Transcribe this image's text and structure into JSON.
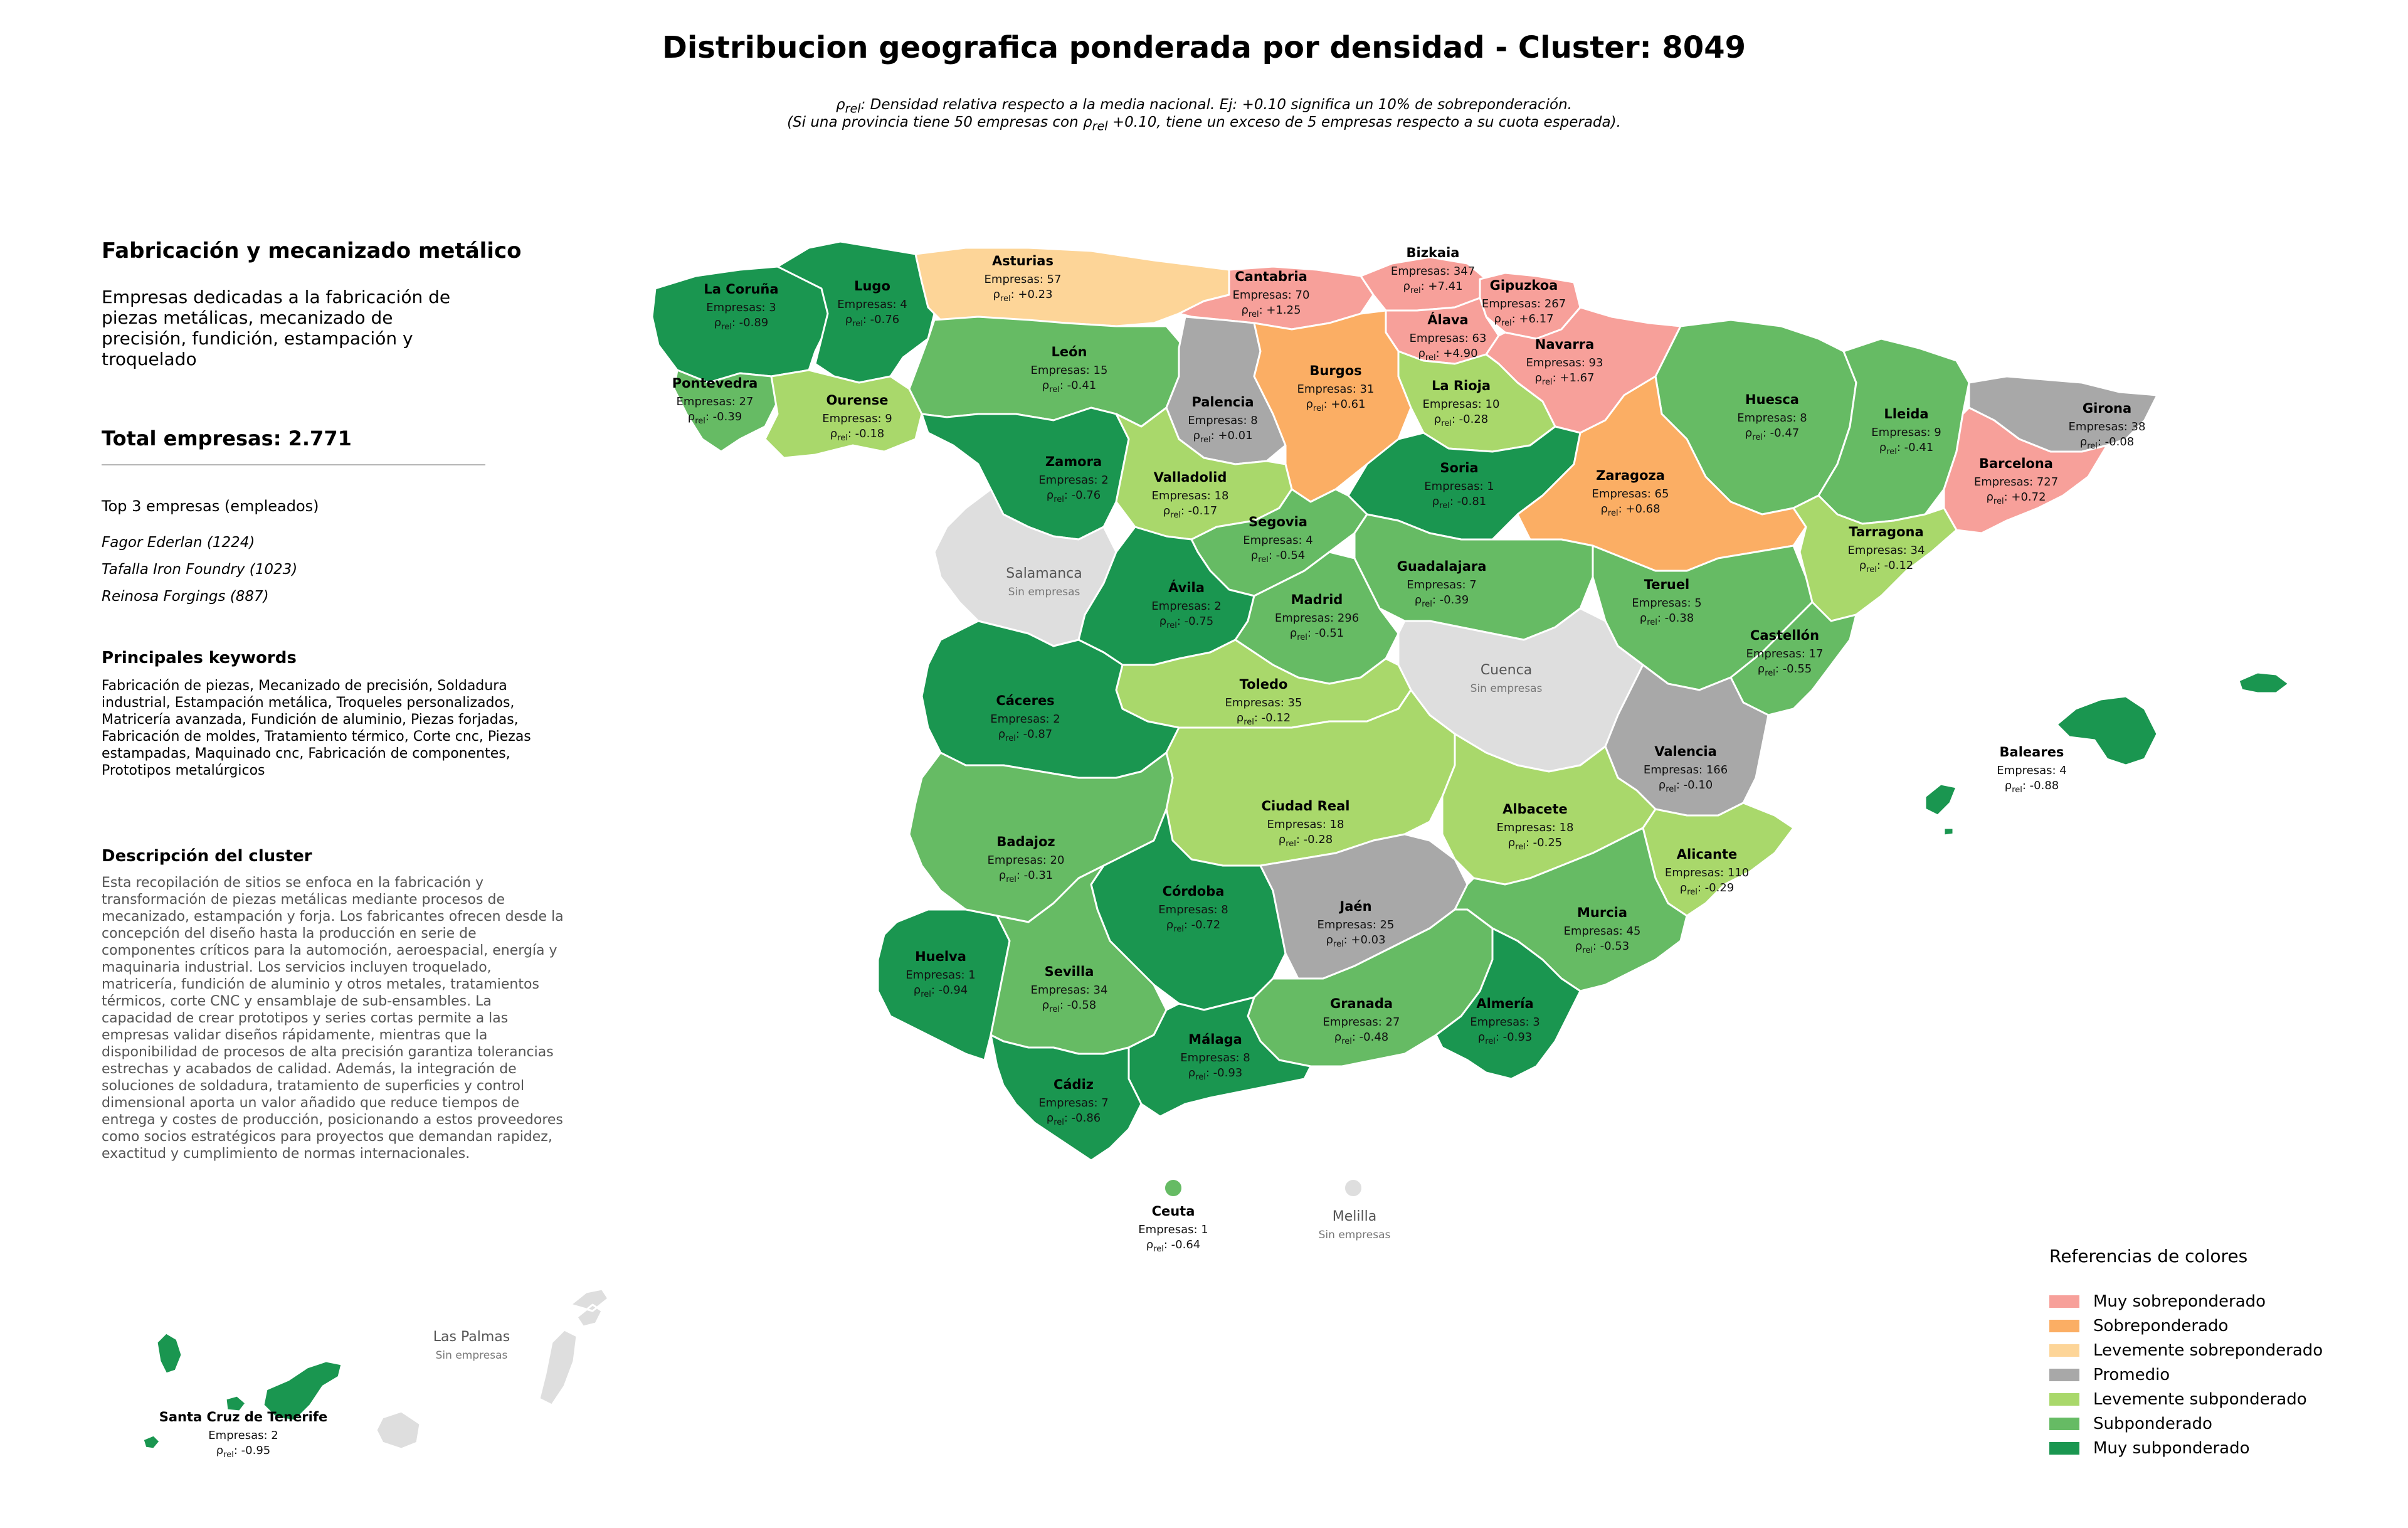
{
  "title": "Distribucion geografica ponderada por densidad - Cluster: 8049",
  "subtitle_line1": {
    "sym": "ρ",
    "sub": "rel",
    "text": ": Densidad relativa respecto a la media nacional. Ej: +0.10 significa un 10% de sobreponderación."
  },
  "subtitle_line2": {
    "pre": "(Si una provincia tiene 50 empresas con ",
    "sym": "ρ",
    "sub": "rel",
    "post": " +0.10, tiene un exceso de 5 empresas respecto a su cuota esperada)."
  },
  "sidebar": {
    "section_title": "Fabricación y mecanizado metálico",
    "section_description": "Empresas dedicadas a la fabricación de piezas metálicas, mecanizado de precisión, fundición, estampación y troquelado",
    "total": "Total empresas: 2.771",
    "top3_title": "Top 3 empresas (empleados)",
    "top3": [
      "Fagor Ederlan (1224)",
      "Tafalla Iron Foundry (1023)",
      "Reinosa Forgings (887)"
    ],
    "keywords_title": "Principales keywords",
    "keywords": "Fabricación de piezas, Mecanizado de precisión, Soldadura industrial, Estampación metálica, Troqueles personalizados, Matricería avanzada, Fundición de aluminio, Piezas forjadas, Fabricación de moldes, Tratamiento térmico, Corte cnc, Piezas estampadas, Maquinado cnc, Fabricación de componentes, Prototipos metalúrgicos",
    "cluster_desc_title": "Descripción del cluster",
    "cluster_desc": "Esta recopilación de sitios se enfoca en la fabricación y transformación de piezas metálicas mediante procesos de mecanizado, estampación y forja. Los fabricantes ofrecen desde la concepción del diseño hasta la producción en serie de componentes críticos para la automoción, aeroespacial, energía y maquinaria industrial. Los servicios incluyen troquelado, matricería, fundición de aluminio y otros metales, tratamientos térmicos, corte CNC y ensamblaje de sub-ensambles. La capacidad de crear prototipos y series cortas permite a las empresas validar diseños rápidamente, mientras que la disponibilidad de procesos de alta precisión garantiza tolerancias estrechas y acabados de calidad. Además, la integración de soluciones de soldadura, tratamiento de superficies y control dimensional aporta un valor añadido que reduce tiempos de entrega y costes de producción, posicionando a estos proveedores como socios estratégicos para proyectos que demandan rapidez, exactitud y cumplimiento de normas internacionales."
  },
  "stat_prefix": "Empresas: ",
  "rho_symbol": "ρ",
  "rho_sub": "rel",
  "empty_text": "Sin empresas",
  "colors": {
    "muy_sobre": "#f7a09a",
    "sobre": "#fbae64",
    "lev_sobre": "#fdd598",
    "promedio": "#a8a8a8",
    "lev_sub": "#a9d86b",
    "sub": "#66bb64",
    "muy_sub": "#1a9650",
    "sin": "#dedede"
  },
  "legend": {
    "title": "Referencias de colores",
    "items": [
      {
        "label": "Muy sobreponderado",
        "color": "#f7a09a"
      },
      {
        "label": "Sobreponderado",
        "color": "#fbae64"
      },
      {
        "label": "Levemente sobreponderado",
        "color": "#fdd598"
      },
      {
        "label": "Promedio",
        "color": "#a8a8a8"
      },
      {
        "label": "Levemente subponderado",
        "color": "#a9d86b"
      },
      {
        "label": "Subponderado",
        "color": "#66bb64"
      },
      {
        "label": "Muy subponderado",
        "color": "#1a9650"
      }
    ]
  },
  "provinces": [
    {
      "name": "La Coruña",
      "empresas": 3,
      "rho": "-0.89",
      "cat": "muy_sub"
    },
    {
      "name": "Lugo",
      "empresas": 4,
      "rho": "-0.76",
      "cat": "muy_sub"
    },
    {
      "name": "Asturias",
      "empresas": 57,
      "rho": "+0.23",
      "cat": "lev_sobre"
    },
    {
      "name": "Cantabria",
      "empresas": 70,
      "rho": "+1.25",
      "cat": "muy_sobre"
    },
    {
      "name": "Bizkaia",
      "empresas": 347,
      "rho": "+7.41",
      "cat": "muy_sobre"
    },
    {
      "name": "Gipuzkoa",
      "empresas": 267,
      "rho": "+6.17",
      "cat": "muy_sobre"
    },
    {
      "name": "Álava",
      "empresas": 63,
      "rho": "+4.90",
      "cat": "muy_sobre"
    },
    {
      "name": "Navarra",
      "empresas": 93,
      "rho": "+1.67",
      "cat": "muy_sobre"
    },
    {
      "name": "Pontevedra",
      "empresas": 27,
      "rho": "-0.39",
      "cat": "sub"
    },
    {
      "name": "Ourense",
      "empresas": 9,
      "rho": "-0.18",
      "cat": "lev_sub"
    },
    {
      "name": "León",
      "empresas": 15,
      "rho": "-0.41",
      "cat": "sub"
    },
    {
      "name": "Palencia",
      "empresas": 8,
      "rho": "+0.01",
      "cat": "promedio"
    },
    {
      "name": "Burgos",
      "empresas": 31,
      "rho": "+0.61",
      "cat": "sobre"
    },
    {
      "name": "La Rioja",
      "empresas": 10,
      "rho": "-0.28",
      "cat": "lev_sub"
    },
    {
      "name": "Huesca",
      "empresas": 8,
      "rho": "-0.47",
      "cat": "sub"
    },
    {
      "name": "Lleida",
      "empresas": 9,
      "rho": "-0.41",
      "cat": "sub"
    },
    {
      "name": "Girona",
      "empresas": 38,
      "rho": "-0.08",
      "cat": "promedio"
    },
    {
      "name": "Barcelona",
      "empresas": 727,
      "rho": "+0.72",
      "cat": "muy_sobre"
    },
    {
      "name": "Zamora",
      "empresas": 2,
      "rho": "-0.76",
      "cat": "muy_sub"
    },
    {
      "name": "Valladolid",
      "empresas": 18,
      "rho": "-0.17",
      "cat": "lev_sub"
    },
    {
      "name": "Soria",
      "empresas": 1,
      "rho": "-0.81",
      "cat": "muy_sub"
    },
    {
      "name": "Zaragoza",
      "empresas": 65,
      "rho": "+0.68",
      "cat": "sobre"
    },
    {
      "name": "Tarragona",
      "empresas": 34,
      "rho": "-0.12",
      "cat": "lev_sub"
    },
    {
      "name": "Segovia",
      "empresas": 4,
      "rho": "-0.54",
      "cat": "sub"
    },
    {
      "name": "Salamanca",
      "empty": true,
      "cat": "sin"
    },
    {
      "name": "Guadalajara",
      "empresas": 7,
      "rho": "-0.39",
      "cat": "sub"
    },
    {
      "name": "Ávila",
      "empresas": 2,
      "rho": "-0.75",
      "cat": "muy_sub"
    },
    {
      "name": "Madrid",
      "empresas": 296,
      "rho": "-0.51",
      "cat": "sub"
    },
    {
      "name": "Teruel",
      "empresas": 5,
      "rho": "-0.38",
      "cat": "sub"
    },
    {
      "name": "Castellón",
      "empresas": 17,
      "rho": "-0.55",
      "cat": "sub"
    },
    {
      "name": "Cuenca",
      "empty": true,
      "cat": "sin"
    },
    {
      "name": "Toledo",
      "empresas": 35,
      "rho": "-0.12",
      "cat": "lev_sub"
    },
    {
      "name": "Cáceres",
      "empresas": 2,
      "rho": "-0.87",
      "cat": "muy_sub"
    },
    {
      "name": "Valencia",
      "empresas": 166,
      "rho": "-0.10",
      "cat": "promedio"
    },
    {
      "name": "Baleares",
      "empresas": 4,
      "rho": "-0.88",
      "cat": "muy_sub"
    },
    {
      "name": "Ciudad Real",
      "empresas": 18,
      "rho": "-0.28",
      "cat": "lev_sub"
    },
    {
      "name": "Albacete",
      "empresas": 18,
      "rho": "-0.25",
      "cat": "lev_sub"
    },
    {
      "name": "Badajoz",
      "empresas": 20,
      "rho": "-0.31",
      "cat": "sub"
    },
    {
      "name": "Alicante",
      "empresas": 110,
      "rho": "-0.29",
      "cat": "lev_sub"
    },
    {
      "name": "Córdoba",
      "empresas": 8,
      "rho": "-0.72",
      "cat": "muy_sub"
    },
    {
      "name": "Jaén",
      "empresas": 25,
      "rho": "+0.03",
      "cat": "promedio"
    },
    {
      "name": "Murcia",
      "empresas": 45,
      "rho": "-0.53",
      "cat": "sub"
    },
    {
      "name": "Huelva",
      "empresas": 1,
      "rho": "-0.94",
      "cat": "muy_sub"
    },
    {
      "name": "Sevilla",
      "empresas": 34,
      "rho": "-0.58",
      "cat": "sub"
    },
    {
      "name": "Granada",
      "empresas": 27,
      "rho": "-0.48",
      "cat": "sub"
    },
    {
      "name": "Almería",
      "empresas": 3,
      "rho": "-0.93",
      "cat": "muy_sub"
    },
    {
      "name": "Málaga",
      "empresas": 8,
      "rho": "-0.93",
      "cat": "muy_sub"
    },
    {
      "name": "Cádiz",
      "empresas": 7,
      "rho": "-0.86",
      "cat": "muy_sub"
    },
    {
      "name": "Ceuta",
      "empresas": 1,
      "rho": "-0.64",
      "cat": "sub"
    },
    {
      "name": "Melilla",
      "empty": true,
      "cat": "sin"
    },
    {
      "name": "Las Palmas",
      "empty": true,
      "cat": "sin"
    },
    {
      "name": "Santa Cruz de Tenerife",
      "empresas": 2,
      "rho": "-0.95",
      "cat": "muy_sub"
    }
  ]
}
